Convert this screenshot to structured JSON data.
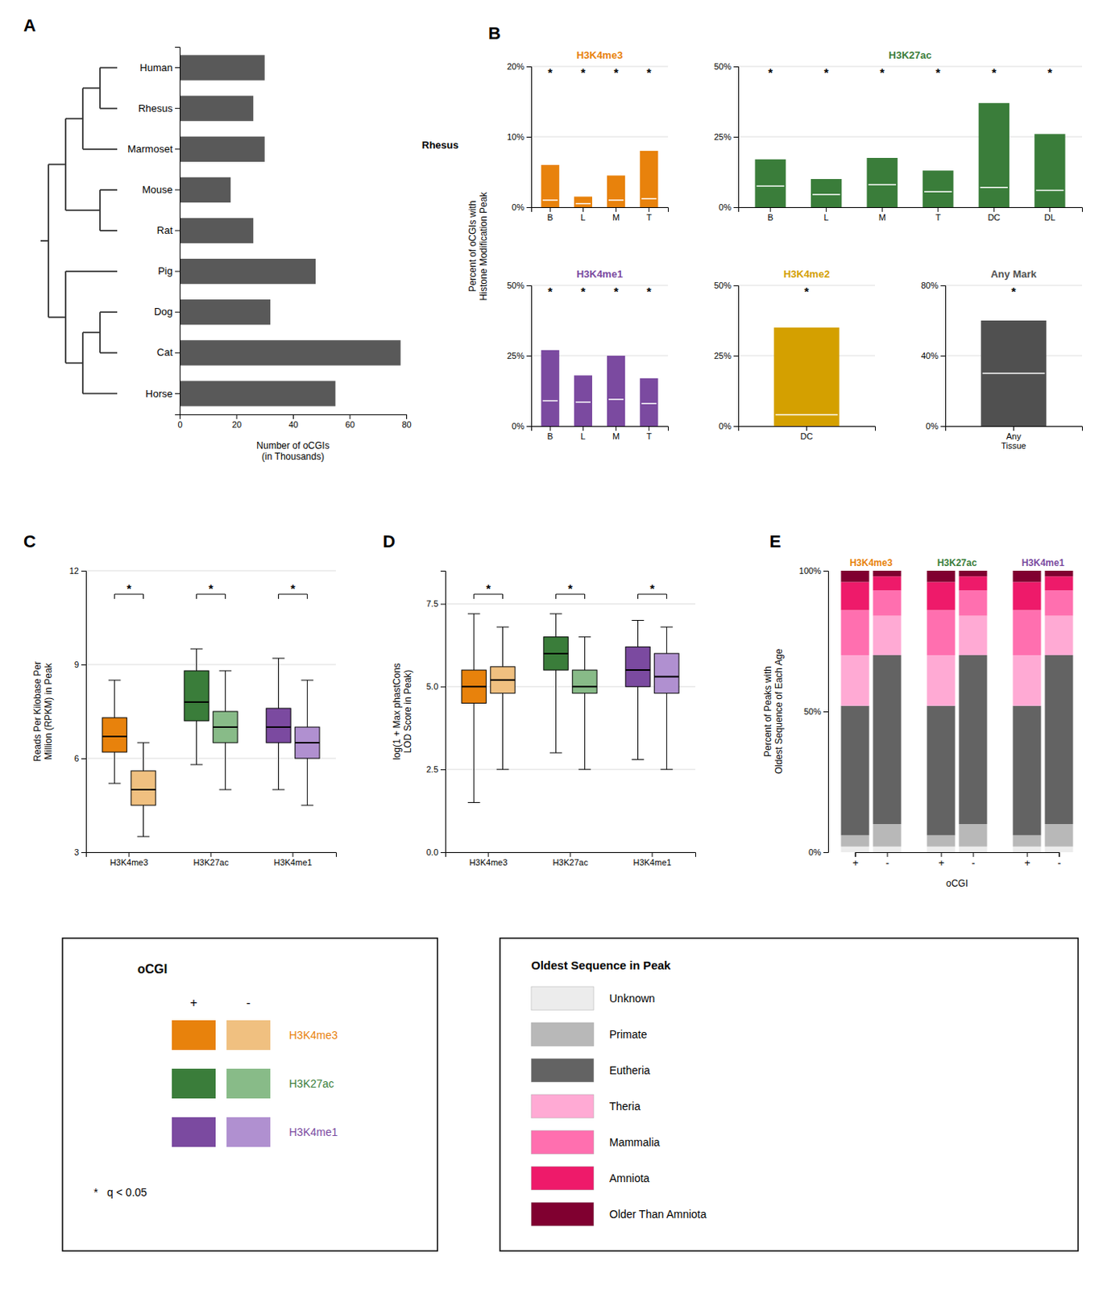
{
  "chart_data": [
    {
      "type": "bar",
      "orientation": "horizontal",
      "panel_label": "A",
      "categories": [
        "Human",
        "Rhesus",
        "Marmoset",
        "Mouse",
        "Rat",
        "Pig",
        "Dog",
        "Cat",
        "Horse"
      ],
      "values": [
        30,
        26,
        30,
        18,
        26,
        48,
        32,
        78,
        55
      ],
      "color": "#595959",
      "xlabel": "Number of oCGIs\n(in Thousands)",
      "xlim": [
        0,
        80
      ],
      "xticks": [
        0,
        20,
        40,
        60,
        80
      ]
    },
    {
      "type": "bar",
      "title": "H3K4me3",
      "color": "#E8820C",
      "panel_label": "B",
      "ylabel": "Percent of oCGIs with\nHistone Modification Peak",
      "categories": [
        "B",
        "L",
        "M",
        "T"
      ],
      "series": [
        {
          "type": "bar",
          "values": [
            6.0,
            1.5,
            4.5,
            8.0
          ]
        },
        {
          "type": "scatter",
          "marker": "hline",
          "color": "#ffffff",
          "values": [
            1.0,
            0.5,
            1.0,
            1.2
          ]
        }
      ],
      "ylim": [
        0,
        20
      ],
      "yticks": [
        {
          "value": 0,
          "label": "0%"
        },
        {
          "value": 10,
          "label": "10%"
        },
        {
          "value": 20,
          "label": "20%"
        }
      ],
      "grid": true,
      "annotations": [
        {
          "text": "Rhesus"
        },
        {
          "text": "*",
          "category": "B"
        },
        {
          "text": "*",
          "category": "L"
        },
        {
          "text": "*",
          "category": "M"
        },
        {
          "text": "*",
          "category": "T"
        }
      ]
    },
    {
      "type": "bar",
      "title": "H3K27ac",
      "color": "#3A7D3A",
      "categories": [
        "B",
        "L",
        "M",
        "T",
        "DC",
        "DL"
      ],
      "series": [
        {
          "type": "bar",
          "values": [
            17.0,
            10.0,
            17.5,
            13.0,
            37.0,
            26.0
          ]
        },
        {
          "type": "scatter",
          "marker": "hline",
          "color": "#ffffff",
          "values": [
            7.5,
            4.5,
            8.0,
            5.5,
            7.0,
            6.0
          ]
        }
      ],
      "ylim": [
        0,
        50
      ],
      "yticks": [
        {
          "value": 0,
          "label": "0%"
        },
        {
          "value": 25,
          "label": "25%"
        },
        {
          "value": 50,
          "label": "50%"
        }
      ],
      "grid": true,
      "annotations": [
        {
          "text": "*",
          "category": "B"
        },
        {
          "text": "*",
          "category": "L"
        },
        {
          "text": "*",
          "category": "M"
        },
        {
          "text": "*",
          "category": "T"
        },
        {
          "text": "*",
          "category": "DC"
        },
        {
          "text": "*",
          "category": "DL"
        }
      ]
    },
    {
      "type": "bar",
      "title": "H3K4me1",
      "color": "#7B4AA0",
      "categories": [
        "B",
        "L",
        "M",
        "T"
      ],
      "series": [
        {
          "type": "bar",
          "values": [
            27.0,
            18.0,
            25.0,
            17.0
          ]
        },
        {
          "type": "scatter",
          "marker": "hline",
          "color": "#ffffff",
          "values": [
            9.0,
            8.5,
            9.5,
            8.0
          ]
        }
      ],
      "ylim": [
        0,
        50
      ],
      "yticks": [
        {
          "value": 0,
          "label": "0%"
        },
        {
          "value": 25,
          "label": "25%"
        },
        {
          "value": 50,
          "label": "50%"
        }
      ],
      "grid": true,
      "annotations": [
        {
          "text": "*",
          "category": "B"
        },
        {
          "text": "*",
          "category": "L"
        },
        {
          "text": "*",
          "category": "M"
        },
        {
          "text": "*",
          "category": "T"
        }
      ]
    },
    {
      "type": "bar",
      "title": "H3K4me2",
      "color": "#D4A000",
      "categories": [
        "DC"
      ],
      "series": [
        {
          "type": "bar",
          "values": [
            35.0
          ]
        },
        {
          "type": "scatter",
          "marker": "hline",
          "color": "#ffffff",
          "values": [
            4.0
          ]
        }
      ],
      "ylim": [
        0,
        50
      ],
      "yticks": [
        {
          "value": 0,
          "label": "0%"
        },
        {
          "value": 25,
          "label": "25%"
        },
        {
          "value": 50,
          "label": "50%"
        }
      ],
      "grid": true,
      "annotations": [
        {
          "text": "*",
          "category": "DC"
        }
      ]
    },
    {
      "type": "bar",
      "title": "Any Mark",
      "color": "#505050",
      "categories": [
        "Any\nTissue"
      ],
      "series": [
        {
          "type": "bar",
          "values": [
            60.0
          ]
        },
        {
          "type": "scatter",
          "marker": "hline",
          "color": "#ffffff",
          "values": [
            30.0
          ]
        }
      ],
      "ylim": [
        0,
        80
      ],
      "yticks": [
        {
          "value": 0,
          "label": "0%"
        },
        {
          "value": 40,
          "label": "40%"
        },
        {
          "value": 80,
          "label": "80%"
        }
      ],
      "grid": true,
      "annotations": [
        {
          "text": "*",
          "category": "Any\nTissue"
        }
      ]
    },
    {
      "type": "box",
      "panel_label": "C",
      "categories": [
        "H3K4me3",
        "H3K27ac",
        "H3K4me1"
      ],
      "series": [
        {
          "colors": [
            "#E8820C",
            "#3A7D3A",
            "#7B4AA0"
          ],
          "q1": [
            6.2,
            7.2,
            6.5
          ],
          "median": [
            6.7,
            7.8,
            7.0
          ],
          "q3": [
            7.3,
            8.8,
            7.6
          ],
          "whislo": [
            5.2,
            5.8,
            5.0
          ],
          "whishi": [
            8.5,
            9.5,
            9.2
          ]
        },
        {
          "colors": [
            "#F0C080",
            "#88BB88",
            "#B090D0"
          ],
          "q1": [
            4.5,
            6.5,
            6.0
          ],
          "median": [
            5.0,
            7.0,
            6.5
          ],
          "q3": [
            5.6,
            7.5,
            7.0
          ],
          "whislo": [
            3.5,
            5.0,
            4.5
          ],
          "whishi": [
            6.5,
            8.8,
            8.5
          ]
        }
      ],
      "ylabel": "Reads Per Kilobase Per\nMillion (RPKM) in Peak",
      "ylim": [
        3,
        12
      ],
      "yticks": [
        3,
        6,
        9,
        12
      ],
      "grid": true,
      "annotations": [
        {
          "text": "*",
          "category": "H3K4me3"
        },
        {
          "text": "*",
          "category": "H3K27ac"
        },
        {
          "text": "*",
          "category": "H3K4me1"
        }
      ]
    },
    {
      "type": "box",
      "panel_label": "D",
      "categories": [
        "H3K4me3",
        "H3K27ac",
        "H3K4me1"
      ],
      "series": [
        {
          "colors": [
            "#E8820C",
            "#3A7D3A",
            "#7B4AA0"
          ],
          "q1": [
            4.5,
            5.5,
            5.0
          ],
          "median": [
            5.0,
            6.0,
            5.5
          ],
          "q3": [
            5.5,
            6.5,
            6.2
          ],
          "whislo": [
            1.5,
            3.0,
            2.8
          ],
          "whishi": [
            7.2,
            7.2,
            7.0
          ]
        },
        {
          "colors": [
            "#F0C080",
            "#88BB88",
            "#B090D0"
          ],
          "q1": [
            4.8,
            4.8,
            4.8
          ],
          "median": [
            5.2,
            5.0,
            5.3
          ],
          "q3": [
            5.6,
            5.5,
            6.0
          ],
          "whislo": [
            2.5,
            2.5,
            2.5
          ],
          "whishi": [
            6.8,
            6.5,
            6.8
          ]
        }
      ],
      "ylabel": "log(1 + Max phastCons\nLOD Score in Peak)",
      "ylim": [
        0.0,
        8.5
      ],
      "yticks": [
        {
          "value": 0,
          "label": "0.0"
        },
        2.5,
        {
          "value": 5,
          "label": "5.0"
        },
        7.5
      ],
      "grid": true,
      "annotations": [
        {
          "text": "*",
          "category": "H3K4me3"
        },
        {
          "text": "*",
          "category": "H3K27ac"
        },
        {
          "text": "*",
          "category": "H3K4me1"
        }
      ]
    },
    {
      "type": "bar",
      "stacked": true,
      "panel_label": "E",
      "categories": [
        "+",
        "-",
        "+",
        "-",
        "+",
        "-"
      ],
      "series": [
        {
          "color": "#ECECEC",
          "values": [
            2,
            2,
            2,
            2,
            2,
            2
          ]
        },
        {
          "color": "#B8B8B8",
          "values": [
            4,
            8,
            4,
            8,
            4,
            8
          ]
        },
        {
          "color": "#636363",
          "values": [
            46,
            60,
            46,
            60,
            46,
            60
          ]
        },
        {
          "color": "#FFAAD4",
          "values": [
            18,
            14,
            18,
            14,
            18,
            14
          ]
        },
        {
          "color": "#FF6FAF",
          "values": [
            16,
            9,
            16,
            9,
            16,
            9
          ]
        },
        {
          "color": "#EE1A6A",
          "values": [
            10,
            5,
            10,
            5,
            10,
            5
          ]
        },
        {
          "color": "#800030",
          "values": [
            4,
            2,
            4,
            2,
            4,
            2
          ]
        }
      ],
      "ylabel": "Percent of Peaks with\nOldest Sequence of Each Age",
      "xlabel": "oCGI",
      "ylim": [
        0,
        100
      ],
      "yticks": [
        {
          "value": 0,
          "label": "0%"
        },
        {
          "value": 50,
          "label": "50%"
        },
        {
          "value": 100,
          "label": "100%"
        }
      ],
      "annotations": [
        {
          "text": "H3K4me3",
          "color": "#E8820C"
        },
        {
          "text": "H3K27ac",
          "color": "#3A7D3A"
        },
        {
          "text": "H3K4me1",
          "color": "#7B4AA0"
        }
      ]
    },
    {
      "type": "legend",
      "title": "oCGI",
      "categories": [
        "+",
        "-"
      ],
      "series": [
        {
          "name": "H3K4me3",
          "colors": [
            "#E8820C",
            "#F0C080"
          ]
        },
        {
          "name": "H3K27ac",
          "colors": [
            "#3A7D3A",
            "#88BB88"
          ]
        },
        {
          "name": "H3K4me1",
          "colors": [
            "#7B4AA0",
            "#B090D0"
          ]
        }
      ],
      "annotations": [
        {
          "text": "*   q < 0.05"
        }
      ]
    },
    {
      "type": "legend",
      "title": "Oldest Sequence in Peak",
      "series": [
        {
          "name": "Unknown",
          "color": "#ECECEC"
        },
        {
          "name": "Primate",
          "color": "#B8B8B8"
        },
        {
          "name": "Eutheria",
          "color": "#636363"
        },
        {
          "name": "Theria",
          "color": "#FFAAD4"
        },
        {
          "name": "Mammalia",
          "color": "#FF6FAF"
        },
        {
          "name": "Amniota",
          "color": "#EE1A6A"
        },
        {
          "name": "Older Than Amniota",
          "color": "#800030"
        }
      ]
    }
  ]
}
